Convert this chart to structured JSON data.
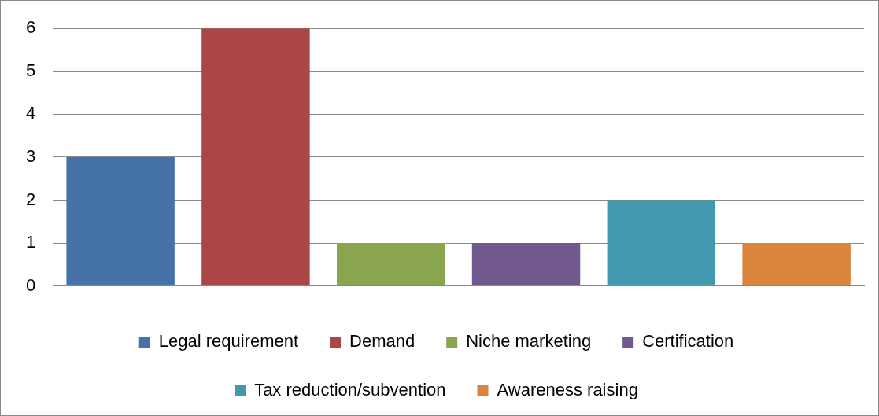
{
  "chart_data": {
    "type": "bar",
    "categories": [
      null,
      null,
      null,
      null,
      null,
      null
    ],
    "series": [
      {
        "name": "Legal requirement",
        "color": "#4572a7",
        "values": [
          3,
          null,
          null,
          null,
          null,
          null
        ]
      },
      {
        "name": "Demand",
        "color": "#aa4643",
        "values": [
          null,
          6,
          null,
          null,
          null,
          null
        ]
      },
      {
        "name": "Niche marketing",
        "color": "#89a54e",
        "values": [
          null,
          null,
          1,
          null,
          null,
          null
        ]
      },
      {
        "name": "Certification",
        "color": "#71588f",
        "values": [
          null,
          null,
          null,
          1,
          null,
          null
        ]
      },
      {
        "name": "Tax reduction/subvention",
        "color": "#4198af",
        "values": [
          null,
          null,
          null,
          null,
          2,
          null
        ]
      },
      {
        "name": "Awareness raising",
        "color": "#db843d",
        "values": [
          null,
          null,
          null,
          null,
          null,
          1
        ]
      }
    ],
    "ylim": [
      0,
      6
    ],
    "yticks": [
      0,
      1,
      2,
      3,
      4,
      5,
      6
    ],
    "grid": "y",
    "legend": "bottom"
  }
}
